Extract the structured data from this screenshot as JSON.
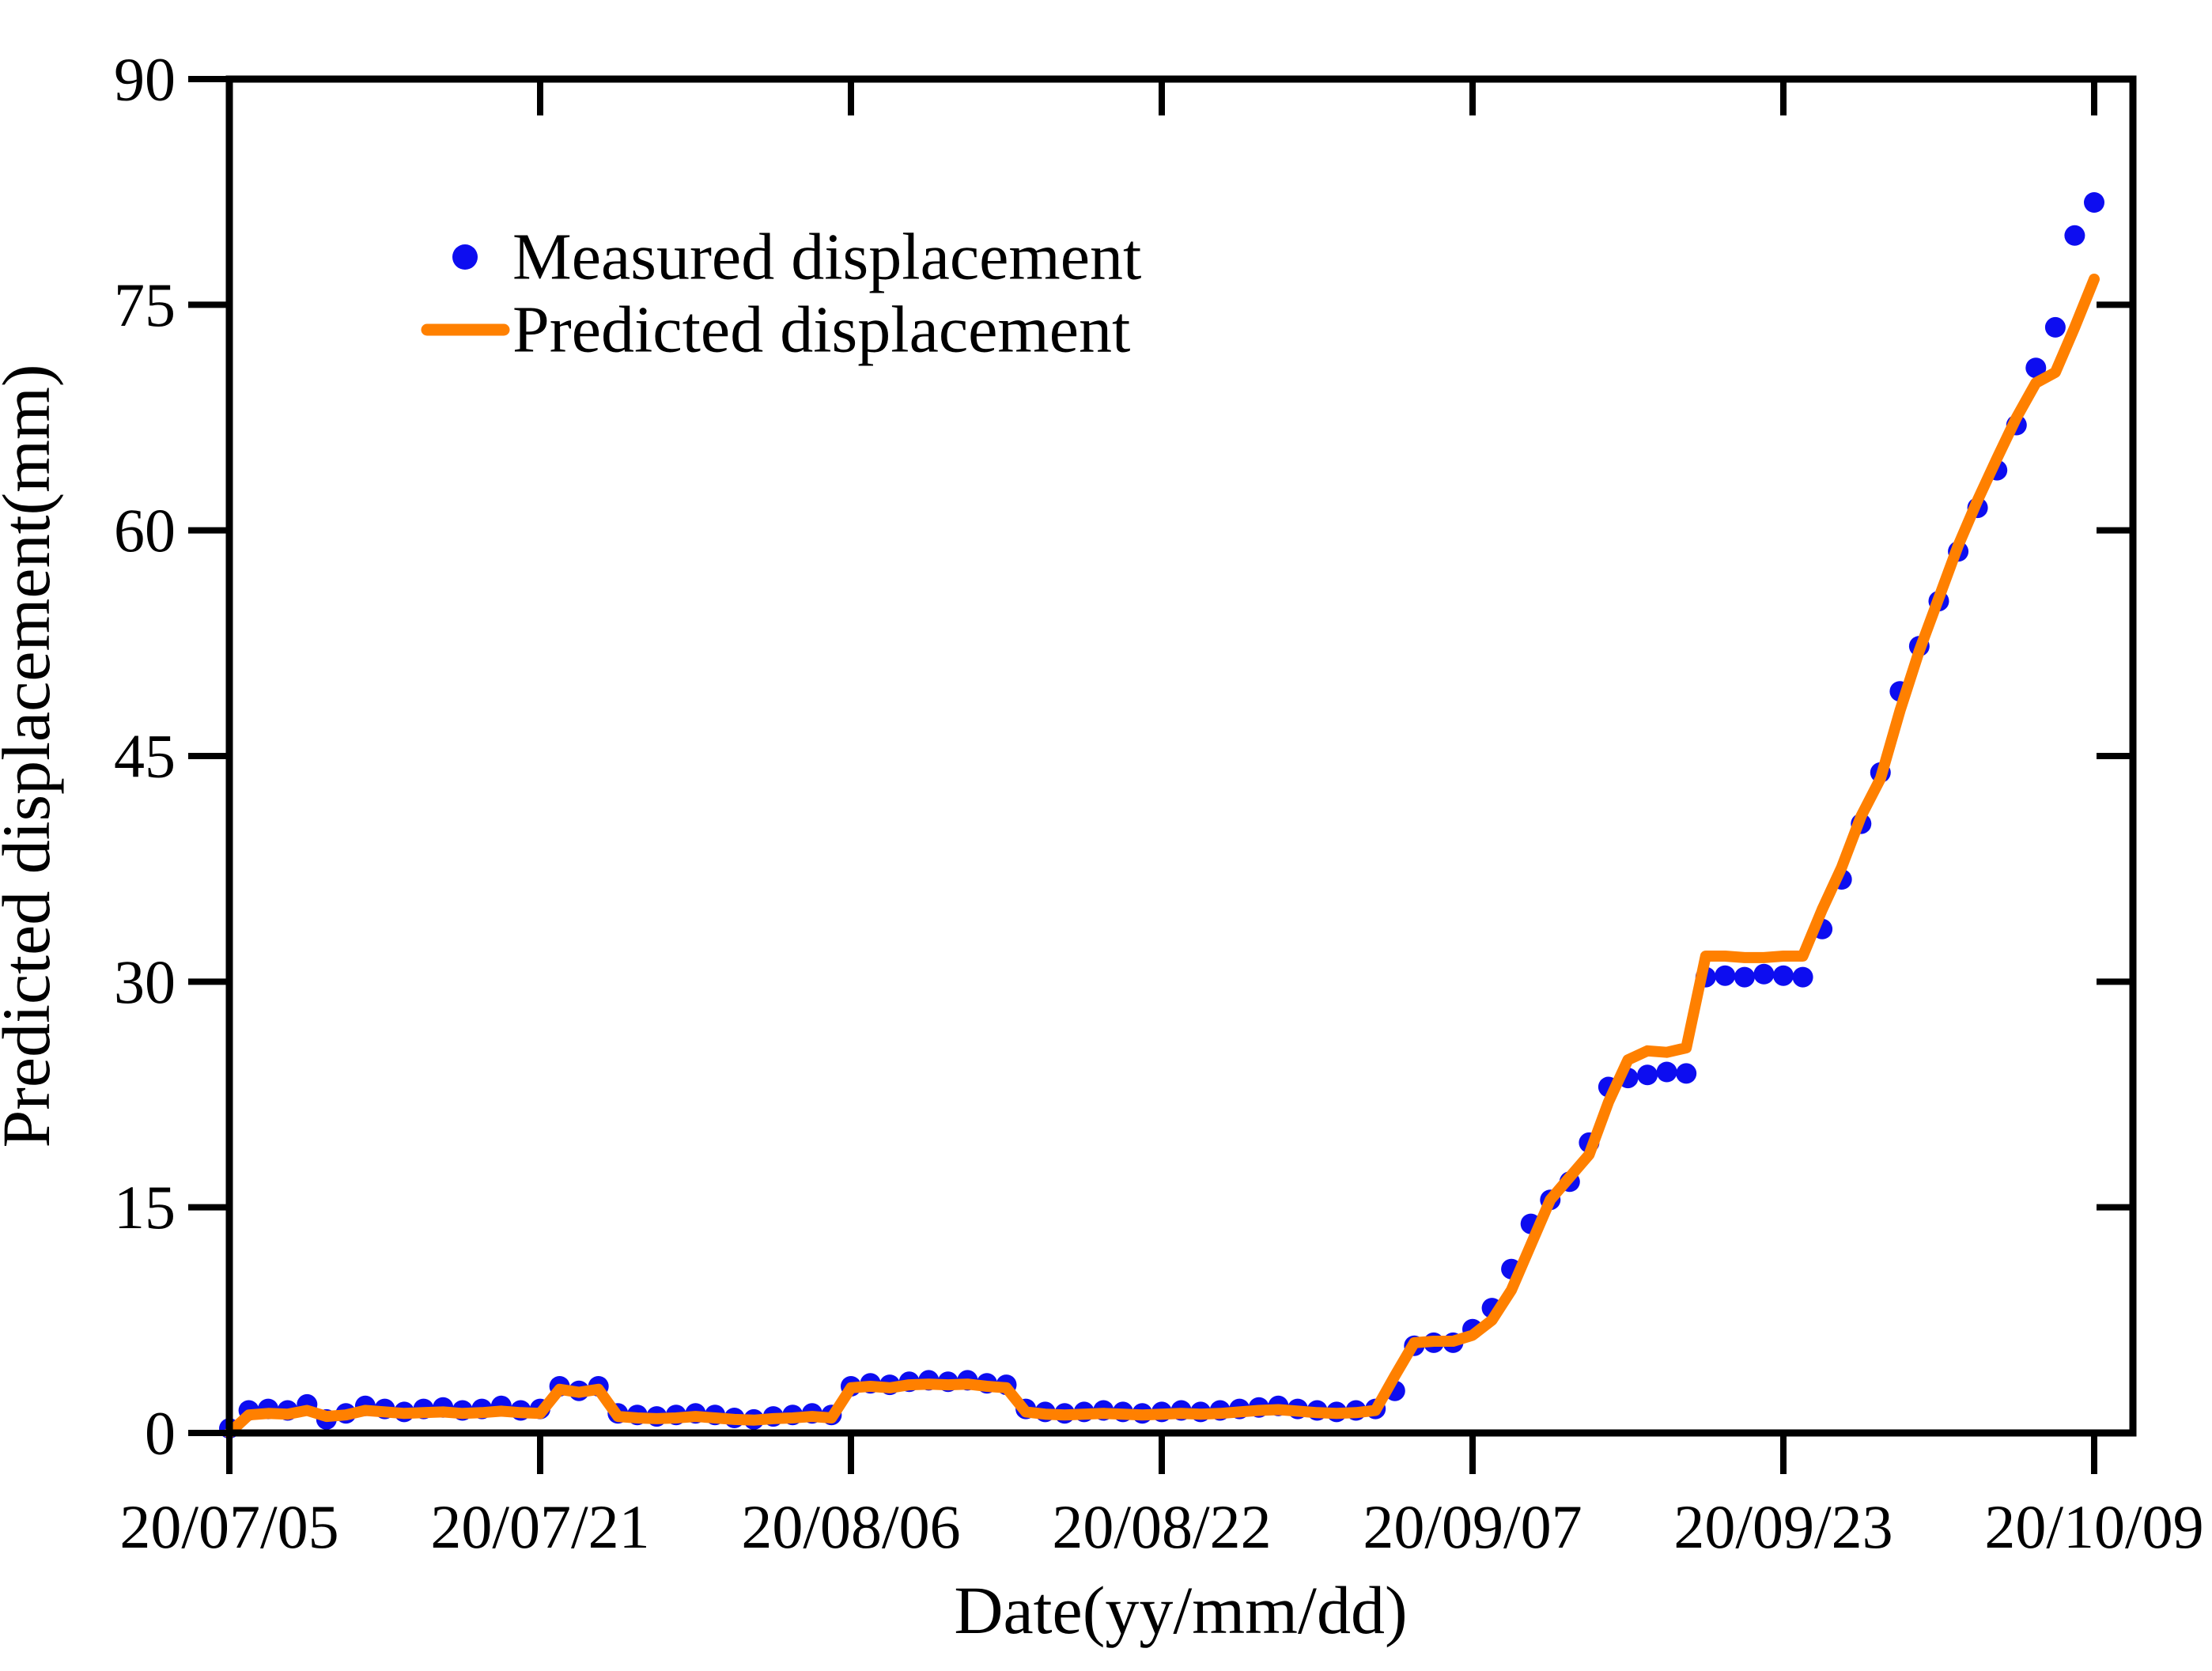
{
  "figure": {
    "background_color": "#ffffff",
    "frame_color": "#000000",
    "measured_color": "#0d0df0",
    "predicted_color": "#ff8000",
    "marker_radius": 13,
    "line_width": 14
  },
  "legend": {
    "items": [
      {
        "label": "Measured displacement",
        "marker": "dot-icon",
        "color": "#0d0df0"
      },
      {
        "label": "Predicted displacement",
        "marker": "line-icon",
        "color": "#ff8000"
      }
    ]
  },
  "chart_data": {
    "type": "line",
    "title": "",
    "xlabel": "Date(yy/mm/dd)",
    "ylabel": "Predicted displacement(mm)",
    "ylim": [
      0,
      90
    ],
    "yticks": [
      0,
      15,
      30,
      45,
      60,
      75,
      90
    ],
    "grid": false,
    "legend_position": "upper-left-inside",
    "xtick_labels": [
      "20/07/05",
      "20/07/21",
      "20/08/06",
      "20/08/22",
      "20/09/07",
      "20/09/23",
      "20/10/09"
    ],
    "xtick_day_indices": [
      0,
      16,
      32,
      48,
      64,
      80,
      96
    ],
    "x": [
      "20/07/05",
      "20/07/06",
      "20/07/07",
      "20/07/08",
      "20/07/09",
      "20/07/10",
      "20/07/11",
      "20/07/12",
      "20/07/13",
      "20/07/14",
      "20/07/15",
      "20/07/16",
      "20/07/17",
      "20/07/18",
      "20/07/19",
      "20/07/20",
      "20/07/21",
      "20/07/22",
      "20/07/23",
      "20/07/24",
      "20/07/25",
      "20/07/26",
      "20/07/27",
      "20/07/28",
      "20/07/29",
      "20/07/30",
      "20/07/31",
      "20/08/01",
      "20/08/02",
      "20/08/03",
      "20/08/04",
      "20/08/05",
      "20/08/06",
      "20/08/07",
      "20/08/08",
      "20/08/09",
      "20/08/10",
      "20/08/11",
      "20/08/12",
      "20/08/13",
      "20/08/14",
      "20/08/15",
      "20/08/16",
      "20/08/17",
      "20/08/18",
      "20/08/19",
      "20/08/20",
      "20/08/21",
      "20/08/22",
      "20/08/23",
      "20/08/24",
      "20/08/25",
      "20/08/26",
      "20/08/27",
      "20/08/28",
      "20/08/29",
      "20/08/30",
      "20/08/31",
      "20/09/01",
      "20/09/02",
      "20/09/03",
      "20/09/04",
      "20/09/05",
      "20/09/06",
      "20/09/07",
      "20/09/08",
      "20/09/09",
      "20/09/10",
      "20/09/11",
      "20/09/12",
      "20/09/13",
      "20/09/14",
      "20/09/15",
      "20/09/16",
      "20/09/17",
      "20/09/18",
      "20/09/19",
      "20/09/20",
      "20/09/21",
      "20/09/22",
      "20/09/23",
      "20/09/24",
      "20/09/25",
      "20/09/26",
      "20/09/27",
      "20/09/28",
      "20/09/29",
      "20/09/30",
      "20/10/01",
      "20/10/02",
      "20/10/03",
      "20/10/04",
      "20/10/05",
      "20/10/06",
      "20/10/07",
      "20/10/08",
      "20/10/09"
    ],
    "series": [
      {
        "name": "Measured displacement",
        "type": "scatter",
        "color": "#0d0df0",
        "values": [
          0.3,
          1.5,
          1.6,
          1.5,
          1.9,
          0.9,
          1.3,
          1.8,
          1.6,
          1.4,
          1.6,
          1.7,
          1.5,
          1.6,
          1.8,
          1.5,
          1.6,
          3.1,
          2.8,
          3.1,
          1.3,
          1.2,
          1.1,
          1.2,
          1.3,
          1.2,
          1.0,
          0.9,
          1.1,
          1.2,
          1.3,
          1.2,
          3.1,
          3.3,
          3.2,
          3.4,
          3.5,
          3.4,
          3.5,
          3.3,
          3.2,
          1.6,
          1.4,
          1.3,
          1.4,
          1.5,
          1.4,
          1.3,
          1.4,
          1.5,
          1.4,
          1.5,
          1.6,
          1.7,
          1.8,
          1.6,
          1.5,
          1.4,
          1.5,
          1.6,
          2.8,
          5.8,
          6.0,
          6.0,
          6.9,
          8.3,
          10.9,
          13.9,
          15.5,
          16.7,
          19.3,
          23.0,
          23.6,
          23.8,
          24.0,
          23.9,
          30.3,
          30.4,
          30.3,
          30.5,
          30.4,
          30.3,
          33.5,
          36.8,
          40.5,
          43.9,
          49.3,
          52.3,
          55.3,
          58.6,
          61.5,
          64.0,
          67.0,
          70.8,
          73.5,
          79.6,
          81.8
        ]
      },
      {
        "name": "Predicted displacement",
        "type": "line",
        "color": "#ff8000",
        "values": [
          0.0,
          1.2,
          1.3,
          1.25,
          1.5,
          1.1,
          1.2,
          1.5,
          1.4,
          1.3,
          1.35,
          1.4,
          1.3,
          1.35,
          1.45,
          1.35,
          1.3,
          2.9,
          2.7,
          2.9,
          1.1,
          1.0,
          0.95,
          1.0,
          1.1,
          1.0,
          0.9,
          0.85,
          0.95,
          1.0,
          1.1,
          1.0,
          3.0,
          3.1,
          3.0,
          3.2,
          3.25,
          3.2,
          3.25,
          3.1,
          3.0,
          1.4,
          1.25,
          1.2,
          1.25,
          1.3,
          1.25,
          1.2,
          1.25,
          1.3,
          1.25,
          1.3,
          1.4,
          1.5,
          1.55,
          1.45,
          1.35,
          1.3,
          1.35,
          1.5,
          3.8,
          6.0,
          6.1,
          6.1,
          6.5,
          7.5,
          9.5,
          12.5,
          15.5,
          17.0,
          18.5,
          22.0,
          24.8,
          25.4,
          25.3,
          25.6,
          31.7,
          31.7,
          31.6,
          31.6,
          31.7,
          31.7,
          34.8,
          37.6,
          41.0,
          43.5,
          48.0,
          52.0,
          55.5,
          59.0,
          62.0,
          64.8,
          67.5,
          69.8,
          70.5,
          73.5,
          76.7
        ]
      }
    ]
  }
}
